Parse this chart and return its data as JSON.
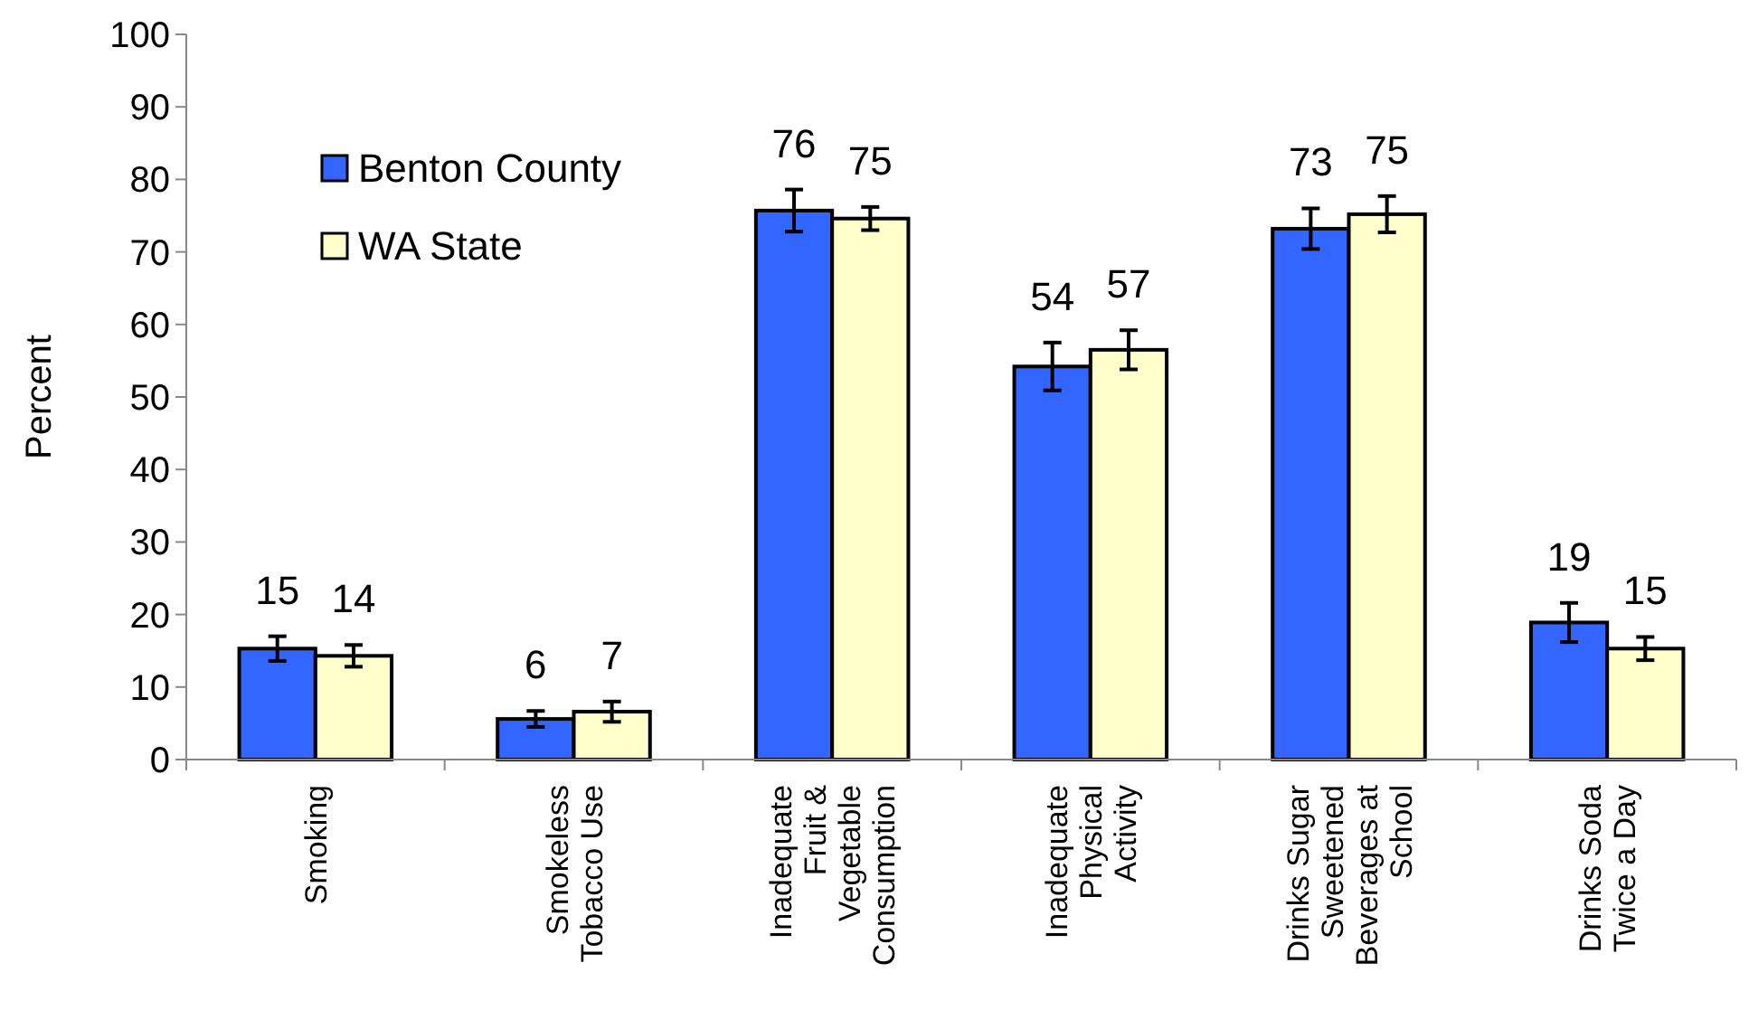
{
  "chart_data": {
    "type": "bar",
    "ylabel": "Percent",
    "categories": [
      "Smoking",
      "Smokeless\nTobacco Use",
      "Inadequate\nFruit &\nVegetable\nConsumption",
      "Inadequate\nPhysical\nActivity",
      "Drinks Sugar\nSweetened\nBeverages at\nSchool",
      "Drinks Soda\nTwice a Day"
    ],
    "series": [
      {
        "name": "Benton County",
        "color": "#3366ff",
        "values": [
          15.3,
          5.6,
          75.7,
          54.2,
          73.2,
          18.9
        ],
        "errors": [
          1.7,
          1.1,
          2.9,
          3.3,
          2.8,
          2.7
        ],
        "value_labels": [
          "15",
          "6",
          "76",
          "54",
          "73",
          "19"
        ]
      },
      {
        "name": "WA State",
        "color": "#ffffcc",
        "values": [
          14.3,
          6.6,
          74.6,
          56.5,
          75.2,
          15.3
        ],
        "errors": [
          1.5,
          1.4,
          1.6,
          2.7,
          2.5,
          1.6
        ],
        "value_labels": [
          "14",
          "7",
          "75",
          "57",
          "75",
          "15"
        ]
      }
    ],
    "ylim": [
      0,
      100
    ],
    "yticks": [
      0,
      10,
      20,
      30,
      40,
      50,
      60,
      70,
      80,
      90,
      100
    ],
    "grid": false,
    "legend": "top left"
  }
}
